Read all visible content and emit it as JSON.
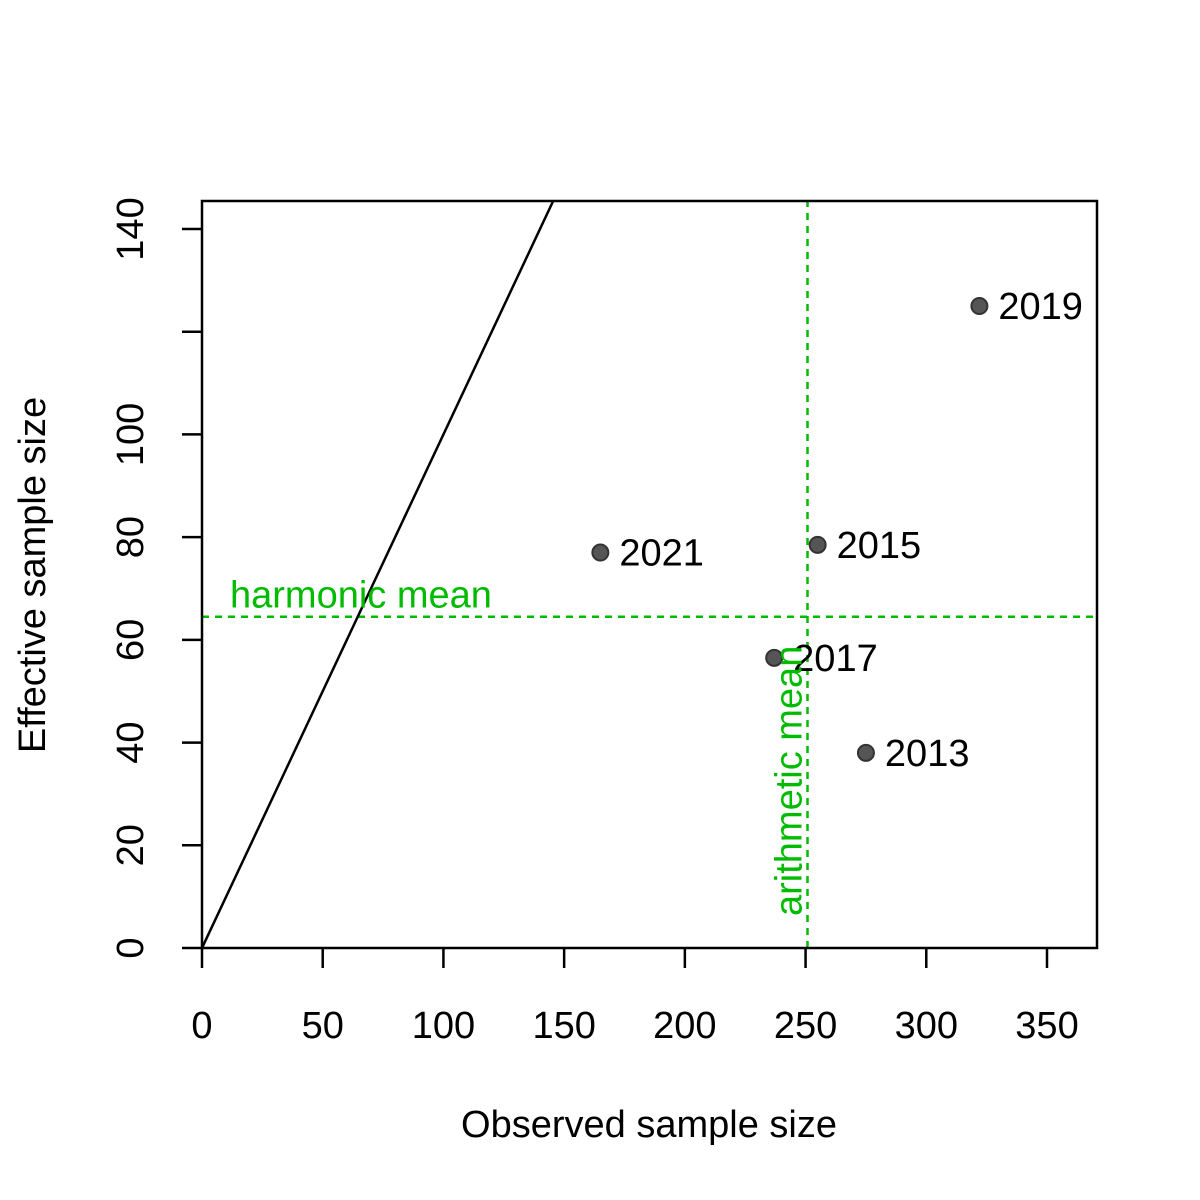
{
  "chart_data": {
    "type": "scatter",
    "xlabel": "Observed sample size",
    "ylabel": "Effective sample size",
    "xlim": [
      0,
      370
    ],
    "ylim": [
      0,
      145
    ],
    "x_ticks": [
      0,
      50,
      100,
      150,
      200,
      250,
      300,
      350
    ],
    "y_ticks": [
      0,
      20,
      40,
      60,
      80,
      100,
      120,
      140
    ],
    "y_tick_labels": [
      "0",
      "20",
      "40",
      "60",
      "80",
      "100",
      "",
      "140"
    ],
    "grid": false,
    "points": [
      {
        "label": "2013",
        "x": 275,
        "y": 38
      },
      {
        "label": "2015",
        "x": 255,
        "y": 78.5
      },
      {
        "label": "2017",
        "x": 237,
        "y": 56.5
      },
      {
        "label": "2019",
        "x": 322,
        "y": 125
      },
      {
        "label": "2021",
        "x": 165,
        "y": 77
      }
    ],
    "point_color": "#555555",
    "identity_line": {
      "slope": 1,
      "color": "#000000"
    },
    "reference_lines": {
      "harmonic_mean": {
        "label": "harmonic mean",
        "y": 64.5
      },
      "arithmetic_mean": {
        "label": "arithmetic mean",
        "x": 250.8
      },
      "color": "#00bb00"
    }
  }
}
